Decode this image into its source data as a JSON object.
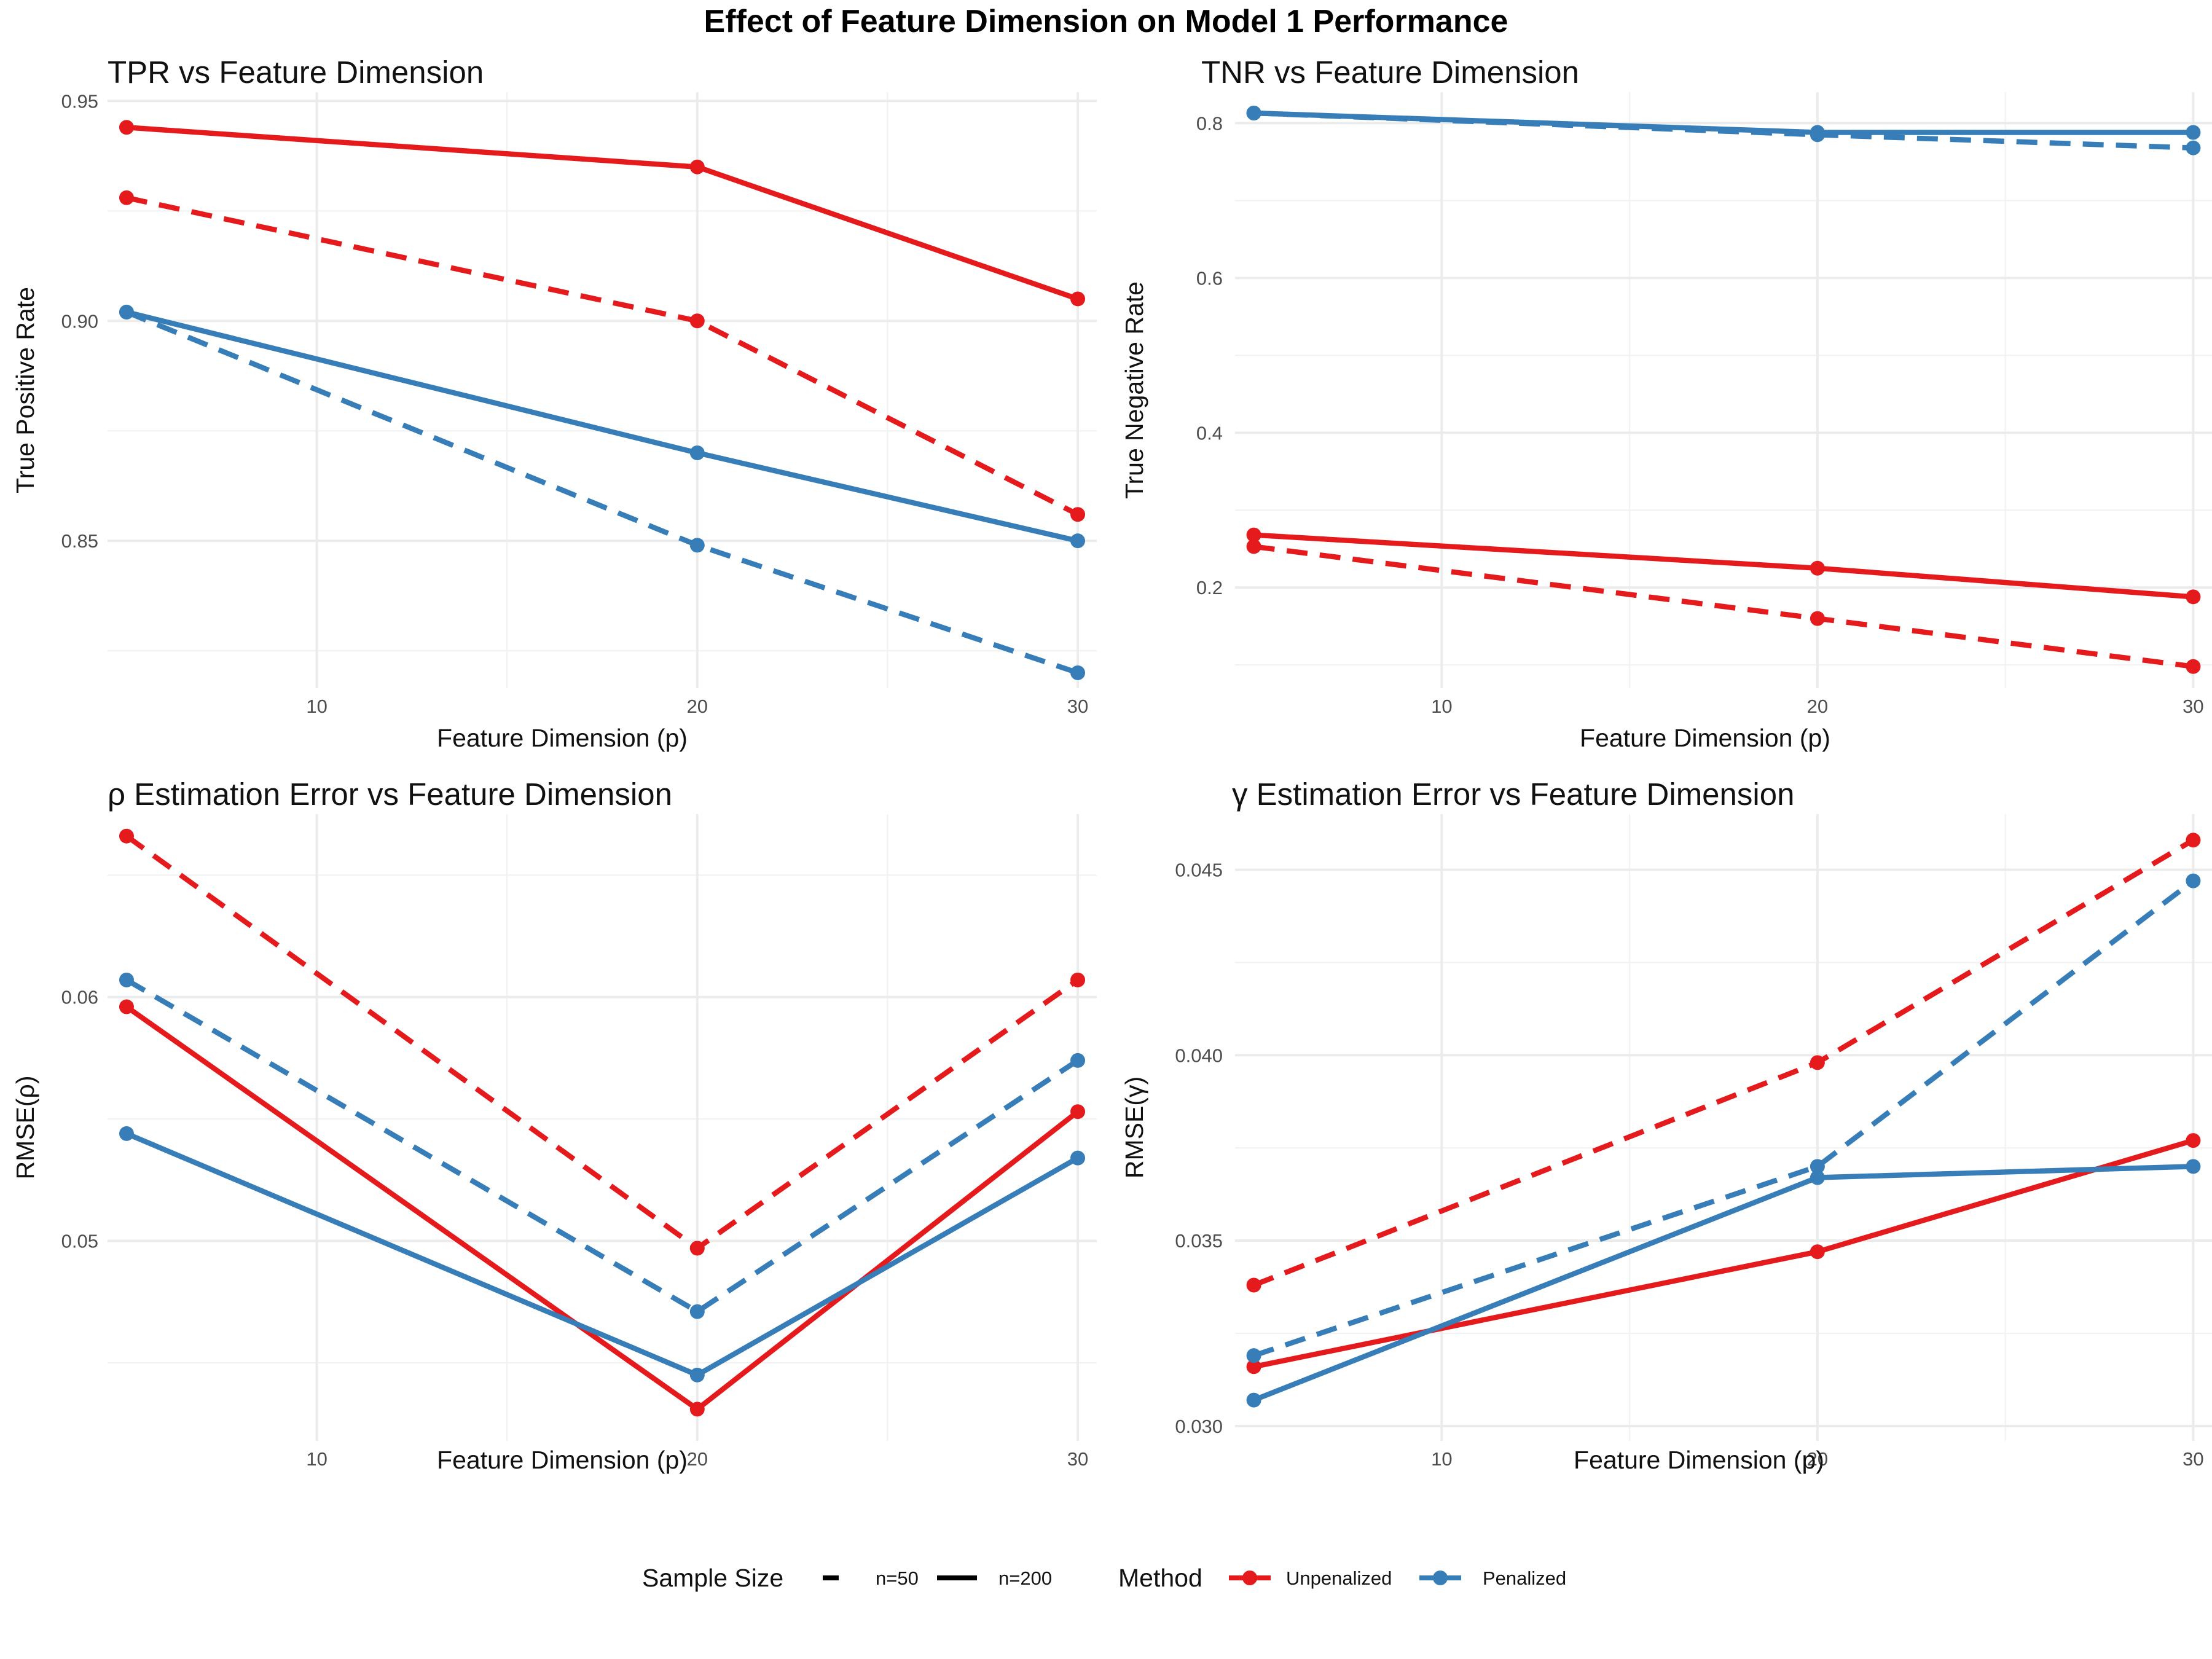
{
  "figure": {
    "title": "Effect of Feature Dimension on Model 1 Performance"
  },
  "legend": {
    "linetype_title": "Sample Size",
    "linetype_entries": [
      {
        "label": "n=50",
        "dash": true
      },
      {
        "label": "n=200",
        "dash": false
      }
    ],
    "color_title": "Method",
    "color_entries": [
      {
        "label": "Unpenalized",
        "color": "#E41A1C"
      },
      {
        "label": "Penalized",
        "color": "#377EB8"
      }
    ]
  },
  "chart_data": [
    {
      "type": "line",
      "title": "TPR vs Feature Dimension",
      "xlabel": "Feature Dimension (p)",
      "ylabel": "True Positive Rate",
      "x": [
        5,
        20,
        30
      ],
      "xlim": [
        4.5,
        30.5
      ],
      "ylim": [
        0.8165,
        0.952
      ],
      "xticks": [
        10,
        20,
        30
      ],
      "xminor": [
        15,
        25
      ],
      "yticks": [
        0.85,
        0.9,
        0.95
      ],
      "ytick_labels": [
        "0.85",
        "0.90",
        "0.95"
      ],
      "yminor": [
        0.825,
        0.875,
        0.925
      ],
      "series": [
        {
          "method": "Unpenalized",
          "sample": "n=200",
          "values": [
            0.944,
            0.935,
            0.905
          ]
        },
        {
          "method": "Unpenalized",
          "sample": "n=50",
          "values": [
            0.928,
            0.9,
            0.856
          ]
        },
        {
          "method": "Penalized",
          "sample": "n=200",
          "values": [
            0.902,
            0.87,
            0.85
          ]
        },
        {
          "method": "Penalized",
          "sample": "n=50",
          "values": [
            0.902,
            0.849,
            0.82
          ]
        }
      ]
    },
    {
      "type": "line",
      "title": "TNR vs Feature Dimension",
      "xlabel": "Feature Dimension (p)",
      "ylabel": "True Negative Rate",
      "x": [
        5,
        20,
        30
      ],
      "xlim": [
        4.5,
        30.5
      ],
      "ylim": [
        0.07,
        0.84
      ],
      "xticks": [
        10,
        20,
        30
      ],
      "xminor": [
        15,
        25
      ],
      "yticks": [
        0.2,
        0.4,
        0.6,
        0.8
      ],
      "ytick_labels": [
        "0.2",
        "0.4",
        "0.6",
        "0.8"
      ],
      "yminor": [
        0.1,
        0.3,
        0.5,
        0.7
      ],
      "series": [
        {
          "method": "Unpenalized",
          "sample": "n=200",
          "values": [
            0.268,
            0.225,
            0.188
          ]
        },
        {
          "method": "Unpenalized",
          "sample": "n=50",
          "values": [
            0.253,
            0.16,
            0.098
          ]
        },
        {
          "method": "Penalized",
          "sample": "n=200",
          "values": [
            0.813,
            0.788,
            0.788
          ]
        },
        {
          "method": "Penalized",
          "sample": "n=50",
          "values": [
            0.813,
            0.785,
            0.768
          ]
        }
      ]
    },
    {
      "type": "line",
      "title": "ρ Estimation Error vs Feature Dimension",
      "xlabel": "Feature Dimension (p)",
      "ylabel": "RMSE(ρ)",
      "x": [
        5,
        20,
        30
      ],
      "xlim": [
        4.5,
        30.5
      ],
      "ylim": [
        0.0418,
        0.0675
      ],
      "xticks": [
        10,
        20,
        30
      ],
      "xminor": [
        15,
        25
      ],
      "yticks": [
        0.05,
        0.06
      ],
      "ytick_labels": [
        "0.05",
        "0.06"
      ],
      "yminor": [
        0.045,
        0.055,
        0.065
      ],
      "series": [
        {
          "method": "Unpenalized",
          "sample": "n=200",
          "values": [
            0.0596,
            0.0431,
            0.0553
          ]
        },
        {
          "method": "Unpenalized",
          "sample": "n=50",
          "values": [
            0.0666,
            0.0497,
            0.0607
          ]
        },
        {
          "method": "Penalized",
          "sample": "n=200",
          "values": [
            0.0544,
            0.0445,
            0.0534
          ]
        },
        {
          "method": "Penalized",
          "sample": "n=50",
          "values": [
            0.0607,
            0.0471,
            0.0574
          ]
        }
      ]
    },
    {
      "type": "line",
      "title": "γ Estimation Error vs Feature Dimension",
      "xlabel": "Feature Dimension (p)",
      "ylabel": "RMSE(γ)",
      "x": [
        5,
        20,
        30
      ],
      "xlim": [
        4.5,
        30.5
      ],
      "ylim": [
        0.0296,
        0.0465
      ],
      "xticks": [
        10,
        20,
        30
      ],
      "xminor": [
        15,
        25
      ],
      "yticks": [
        0.03,
        0.035,
        0.04,
        0.045
      ],
      "ytick_labels": [
        "0.030",
        "0.035",
        "0.040",
        "0.045"
      ],
      "yminor": [
        0.0325,
        0.0375,
        0.0425
      ],
      "series": [
        {
          "method": "Unpenalized",
          "sample": "n=200",
          "values": [
            0.0316,
            0.0347,
            0.0377
          ]
        },
        {
          "method": "Unpenalized",
          "sample": "n=50",
          "values": [
            0.0338,
            0.0398,
            0.0458
          ]
        },
        {
          "method": "Penalized",
          "sample": "n=200",
          "values": [
            0.0307,
            0.0367,
            0.037
          ]
        },
        {
          "method": "Penalized",
          "sample": "n=50",
          "values": [
            0.0319,
            0.037,
            0.0447
          ]
        }
      ]
    }
  ]
}
